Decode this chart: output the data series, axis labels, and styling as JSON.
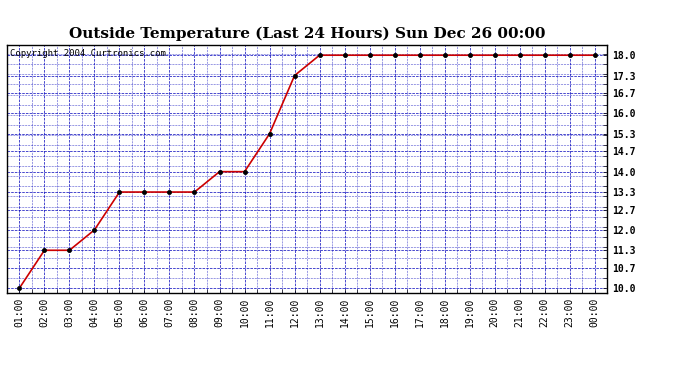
{
  "title": "Outside Temperature (Last 24 Hours) Sun Dec 26 00:00",
  "copyright_text": "Copyright 2004 Curtronics.com",
  "x_labels": [
    "01:00",
    "02:00",
    "03:00",
    "04:00",
    "05:00",
    "06:00",
    "07:00",
    "08:00",
    "09:00",
    "10:00",
    "11:00",
    "12:00",
    "13:00",
    "14:00",
    "15:00",
    "16:00",
    "17:00",
    "18:00",
    "19:00",
    "20:00",
    "21:00",
    "22:00",
    "23:00",
    "00:00"
  ],
  "x_values": [
    1,
    2,
    3,
    4,
    5,
    6,
    7,
    8,
    9,
    10,
    11,
    12,
    13,
    14,
    15,
    16,
    17,
    18,
    19,
    20,
    21,
    22,
    23,
    24
  ],
  "y_values": [
    10.0,
    11.3,
    11.3,
    12.0,
    13.3,
    13.3,
    13.3,
    13.3,
    14.0,
    14.0,
    15.3,
    17.3,
    18.0,
    18.0,
    18.0,
    18.0,
    18.0,
    18.0,
    18.0,
    18.0,
    18.0,
    18.0,
    18.0,
    18.0
  ],
  "y_ticks": [
    10.0,
    10.7,
    11.3,
    12.0,
    12.7,
    13.3,
    14.0,
    14.7,
    15.3,
    16.0,
    16.7,
    17.3,
    18.0
  ],
  "ylim": [
    9.85,
    18.35
  ],
  "line_color": "#cc0000",
  "marker_color": "#000000",
  "grid_color": "#0000bb",
  "background_color": "#ffffff",
  "plot_bg_color": "#ffffff",
  "title_fontsize": 11,
  "tick_fontsize": 7,
  "copyright_fontsize": 6.5
}
